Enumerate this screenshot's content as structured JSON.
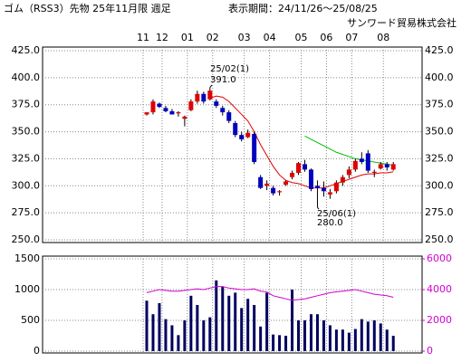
{
  "header": {
    "title": "ゴム（RSS3）先物 25年11月限 週足",
    "period": "表示期間：24/11/26～25/08/25",
    "company": "サンワード貿易株式会社"
  },
  "chart_data": [
    {
      "type": "candlestick",
      "categories": [
        "11",
        null,
        null,
        "12",
        null,
        null,
        null,
        "01",
        null,
        null,
        null,
        "02",
        null,
        null,
        null,
        null,
        "03",
        null,
        null,
        null,
        "04",
        null,
        null,
        null,
        null,
        "05",
        null,
        null,
        null,
        "06",
        null,
        null,
        null,
        "07",
        null,
        null,
        null,
        null,
        "08",
        null
      ],
      "open": [
        366,
        368,
        376,
        372,
        369,
        367,
        362,
        370,
        378,
        385,
        380,
        378,
        372,
        368,
        358,
        347,
        345,
        348,
        308,
        300,
        298,
        294,
        301,
        308,
        312,
        320,
        315,
        300,
        298,
        292,
        295,
        303,
        310,
        315,
        325,
        330,
        312,
        316,
        320,
        315
      ],
      "high": [
        368,
        380,
        377,
        374,
        371,
        369,
        365,
        380,
        388,
        387,
        391,
        380,
        374,
        370,
        360,
        350,
        352,
        350,
        310,
        305,
        300,
        296,
        305,
        314,
        322,
        324,
        316,
        305,
        304,
        297,
        305,
        310,
        318,
        325,
        331,
        333,
        315,
        322,
        322,
        322
      ],
      "low": [
        365,
        366,
        372,
        368,
        366,
        364,
        355,
        369,
        376,
        376,
        379,
        372,
        365,
        358,
        345,
        341,
        344,
        320,
        297,
        296,
        291,
        291,
        300,
        306,
        310,
        313,
        295,
        280,
        290,
        288,
        293,
        300,
        307,
        313,
        320,
        312,
        308,
        315,
        314,
        314
      ],
      "close": [
        368,
        378,
        373,
        369,
        366,
        368,
        364,
        378,
        385,
        378,
        388,
        374,
        368,
        360,
        347,
        343,
        349,
        322,
        298,
        302,
        293,
        295,
        304,
        312,
        321,
        315,
        297,
        298,
        295,
        294,
        303,
        308,
        315,
        323,
        322,
        314,
        313,
        320,
        317,
        320
      ],
      "up_color": "#e00000",
      "down_color": "#0000c0",
      "lines": [
        {
          "color": "#e00000",
          "values": [
            null,
            null,
            null,
            null,
            null,
            null,
            null,
            null,
            null,
            null,
            381,
            383,
            382,
            378,
            372,
            366,
            360,
            350,
            338,
            328,
            318,
            310,
            305,
            303,
            302,
            300,
            298,
            298,
            298,
            300,
            302,
            304,
            306,
            308,
            310,
            311,
            311,
            312,
            312,
            313
          ]
        },
        {
          "color": "#00c000",
          "values": [
            null,
            null,
            null,
            null,
            null,
            null,
            null,
            null,
            null,
            null,
            null,
            null,
            null,
            null,
            null,
            null,
            null,
            null,
            null,
            null,
            null,
            null,
            null,
            null,
            null,
            346,
            343,
            340,
            337,
            334,
            331,
            329,
            327,
            325,
            324,
            323,
            322,
            321,
            320,
            319
          ]
        }
      ],
      "annotations": [
        "25/02(1)",
        "391.0",
        "25/06(1)",
        "280.0"
      ],
      "ylim": [
        250,
        425
      ],
      "yticks": [
        {
          "value": 250,
          "label": "250.0"
        },
        {
          "value": 275,
          "label": "275.0"
        },
        {
          "value": 300,
          "label": "300.0"
        },
        {
          "value": 325,
          "label": "325.0"
        },
        {
          "value": 350,
          "label": "350.0"
        },
        {
          "value": 375,
          "label": "375.0"
        },
        {
          "value": 400,
          "label": "400.0"
        },
        {
          "value": 425,
          "label": "425.0"
        }
      ],
      "grid": true
    },
    {
      "type": "bar",
      "color": "#000060",
      "values": [
        820,
        600,
        780,
        520,
        420,
        260,
        500,
        900,
        750,
        500,
        550,
        1150,
        1050,
        900,
        950,
        700,
        850,
        750,
        400,
        950,
        270,
        260,
        250,
        1000,
        500,
        500,
        600,
        600,
        500,
        420,
        350,
        350,
        300,
        360,
        520,
        480,
        500,
        450,
        350,
        250
      ],
      "ylim": [
        0,
        1500
      ],
      "yticks": [
        0,
        500,
        1000,
        1500
      ],
      "line": {
        "color": "#d000d0",
        "axis": "y2",
        "values": [
          3800,
          3900,
          4000,
          3950,
          3900,
          3900,
          3950,
          4000,
          4050,
          4000,
          4100,
          4200,
          4200,
          4100,
          4050,
          4000,
          4000,
          4050,
          3900,
          3850,
          3600,
          3500,
          3400,
          3300,
          3350,
          3400,
          3500,
          3600,
          3700,
          3800,
          3850,
          3900,
          3950,
          4000,
          3900,
          3800,
          3700,
          3650,
          3600,
          3500
        ]
      },
      "y2lim": [
        0,
        6000
      ],
      "y2ticks": [
        0,
        2000,
        4000,
        6000
      ],
      "grid": true
    }
  ]
}
